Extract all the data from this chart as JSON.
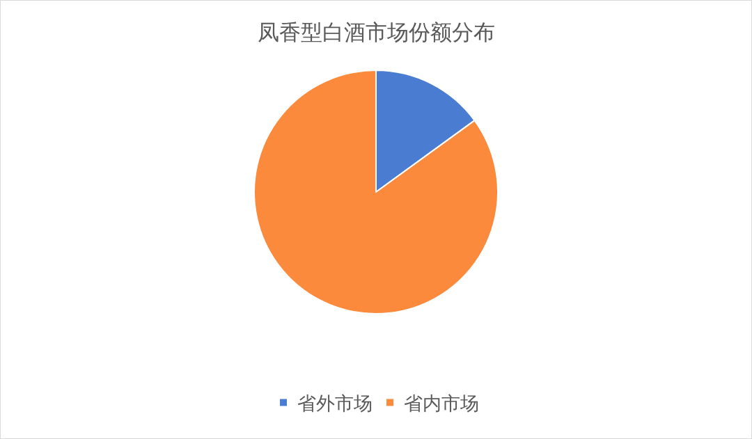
{
  "chart_data": {
    "type": "pie",
    "title": "凤香型白酒市场份额分布",
    "categories": [
      "省外市场",
      "省内市场"
    ],
    "values": [
      15,
      85
    ],
    "colors": [
      "#4a7dd1",
      "#fb8a3c"
    ],
    "legend": "bottom"
  }
}
